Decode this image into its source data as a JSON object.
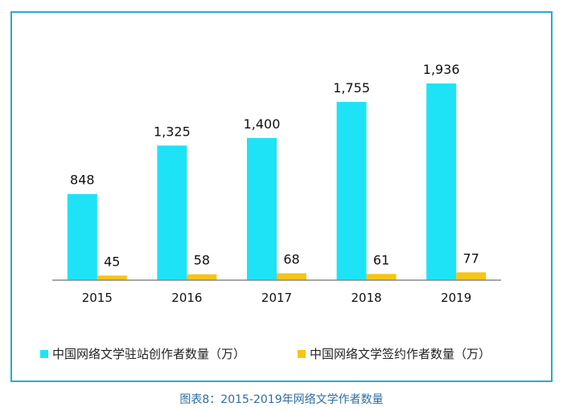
{
  "chart_data": {
    "type": "bar",
    "categories": [
      "2015",
      "2016",
      "2017",
      "2018",
      "2019"
    ],
    "series": [
      {
        "name": "中国网络文学驻站创作者数量（万）",
        "values": [
          848,
          1325,
          1400,
          1755,
          1936
        ],
        "color": "#1ee3f7"
      },
      {
        "name": "中国网络文学签约作者数量（万）",
        "values": [
          45,
          58,
          68,
          61,
          77
        ],
        "color": "#f5c518"
      }
    ],
    "data_labels": [
      [
        "848",
        "1,325",
        "1,400",
        "1,755",
        "1,936"
      ],
      [
        "45",
        "58",
        "68",
        "61",
        "77"
      ]
    ],
    "ylim": [
      0,
      1936
    ],
    "grid": false,
    "legend": "bottom"
  },
  "caption": "图表8：2015-2019年网络文学作者数量"
}
